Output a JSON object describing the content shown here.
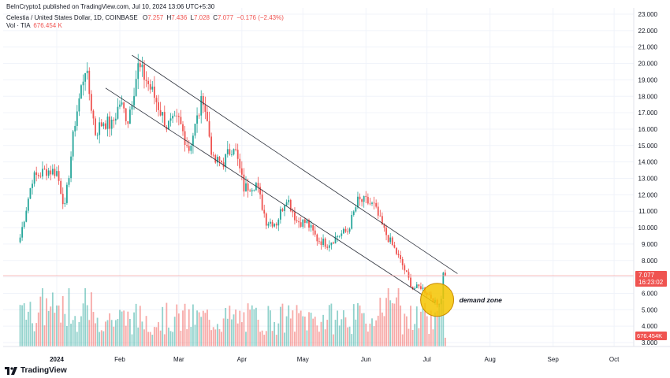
{
  "header": {
    "published": "BeInCrypto1 published on TradingView.com, Jul 10, 2024 13:06 UTC+5:30",
    "symbol": "Celestia / United States Dollar, 1D, COINBASE",
    "ohlc": {
      "o_label": "O",
      "o": "7.257",
      "h_label": "H",
      "h": "7.436",
      "l_label": "L",
      "l": "7.028",
      "c_label": "C",
      "c": "7.077",
      "change": "−0.176 (−2.43%)"
    },
    "volume_label": "Vol · TIA",
    "volume_value": "676.454 K"
  },
  "branding": {
    "logo_text": "TradingView"
  },
  "annotation": {
    "demand_zone": "demand zone"
  },
  "price_tag": {
    "value": "7.077",
    "countdown": "16:23:02"
  },
  "volume_tag": "676.454K",
  "colors": {
    "up": "#26a69a",
    "down": "#ef5350",
    "price_line": "#f7a6a6",
    "zone": "#f5c400",
    "zone_edge": "#c98a00"
  },
  "chart_data": {
    "type": "candlestick",
    "title": "Celestia / United States Dollar, 1D, COINBASE",
    "x_ticks": [
      "2024",
      "Feb",
      "Mar",
      "Apr",
      "May",
      "Jun",
      "Jul",
      "Aug",
      "Sep",
      "Oct"
    ],
    "y_ticks": [
      "3.000",
      "4.000",
      "5.000",
      "6.000",
      "7.000",
      "8.000",
      "9.000",
      "10.000",
      "11.000",
      "12.000",
      "13.000",
      "14.000",
      "15.000",
      "16.000",
      "17.000",
      "18.000",
      "19.000",
      "20.000",
      "21.000",
      "22.000",
      "23.000"
    ],
    "ylim": [
      3,
      23
    ],
    "price_anchors": [
      [
        "2023-12-14",
        9.4
      ],
      [
        "2023-12-20",
        13.0
      ],
      [
        "2023-12-27",
        13.5
      ],
      [
        "2024-01-01",
        13.4
      ],
      [
        "2024-01-05",
        11.2
      ],
      [
        "2024-01-10",
        16.5
      ],
      [
        "2024-01-15",
        19.8
      ],
      [
        "2024-01-20",
        15.8
      ],
      [
        "2024-01-24",
        16.5
      ],
      [
        "2024-01-28",
        16.2
      ],
      [
        "2024-02-01",
        17.6
      ],
      [
        "2024-02-05",
        16.6
      ],
      [
        "2024-02-10",
        19.8
      ],
      [
        "2024-02-14",
        19.0
      ],
      [
        "2024-02-19",
        17.7
      ],
      [
        "2024-02-24",
        16.2
      ],
      [
        "2024-03-01",
        16.5
      ],
      [
        "2024-03-06",
        14.8
      ],
      [
        "2024-03-10",
        16.6
      ],
      [
        "2024-03-13",
        18.0
      ],
      [
        "2024-03-18",
        14.0
      ],
      [
        "2024-03-23",
        14.0
      ],
      [
        "2024-03-28",
        15.1
      ],
      [
        "2024-04-02",
        12.4
      ],
      [
        "2024-04-08",
        12.7
      ],
      [
        "2024-04-13",
        10.4
      ],
      [
        "2024-04-18",
        10.3
      ],
      [
        "2024-04-23",
        11.9
      ],
      [
        "2024-04-28",
        10.4
      ],
      [
        "2024-05-03",
        10.3
      ],
      [
        "2024-05-08",
        9.3
      ],
      [
        "2024-05-13",
        9.0
      ],
      [
        "2024-05-18",
        9.5
      ],
      [
        "2024-05-23",
        9.8
      ],
      [
        "2024-05-28",
        11.6
      ],
      [
        "2024-06-01",
        11.6
      ],
      [
        "2024-06-05",
        11.3
      ],
      [
        "2024-06-10",
        9.8
      ],
      [
        "2024-06-15",
        8.7
      ],
      [
        "2024-06-19",
        7.7
      ],
      [
        "2024-06-24",
        6.3
      ],
      [
        "2024-06-28",
        6.4
      ],
      [
        "2024-07-02",
        5.9
      ],
      [
        "2024-07-06",
        5.3
      ],
      [
        "2024-07-08",
        5.7
      ],
      [
        "2024-07-09",
        7.257
      ],
      [
        "2024-07-10",
        7.077
      ]
    ],
    "last_candle": {
      "date": "2024-07-10",
      "open": 7.257,
      "high": 7.436,
      "low": 7.028,
      "close": 7.077,
      "volume": "676.454K"
    },
    "channel": {
      "upper": [
        [
          "2024-02-07",
          20.5
        ],
        [
          "2024-07-16",
          7.2
        ]
      ],
      "lower": [
        [
          "2024-01-25",
          18.5
        ],
        [
          "2024-07-05",
          5.4
        ]
      ]
    },
    "demand_zone": {
      "center": [
        "2024-07-06",
        5.6
      ],
      "label": "demand zone"
    },
    "current_price": 7.077
  }
}
